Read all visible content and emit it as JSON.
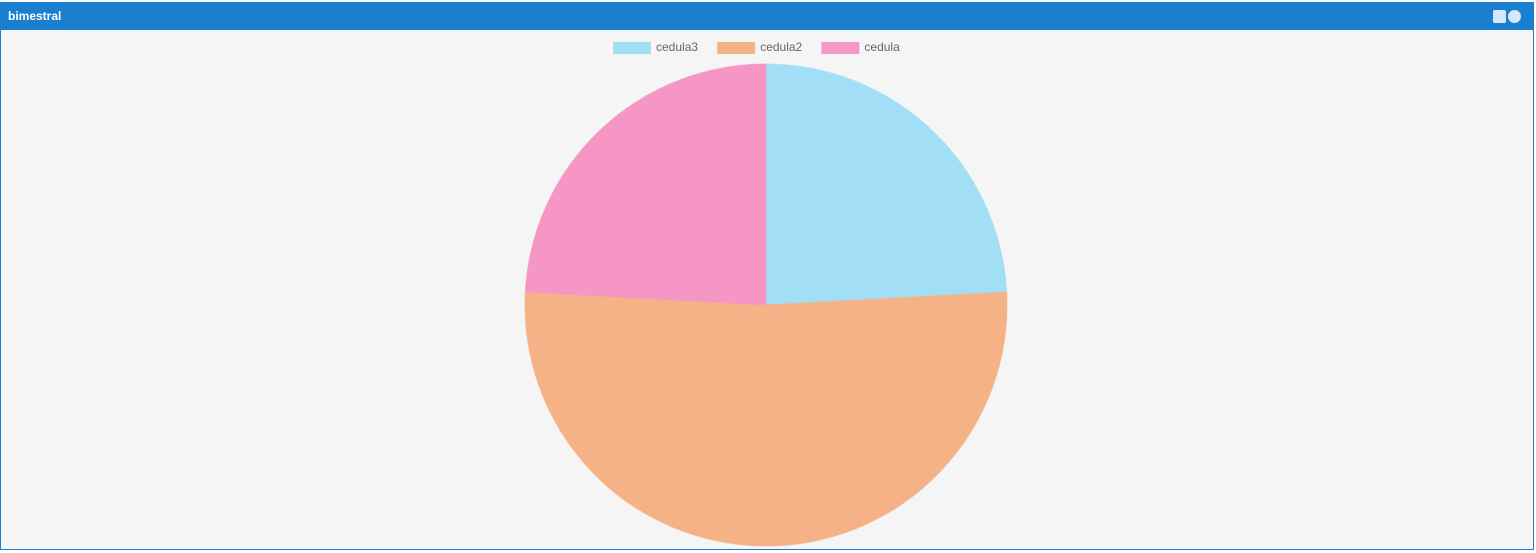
{
  "header": {
    "title": "bimestral"
  },
  "chart_data": {
    "type": "pie",
    "categories": [
      "cedula3",
      "cedula2",
      "cedula"
    ],
    "values": [
      7,
      15,
      7
    ],
    "colors": [
      "#a2dff6",
      "#f5b286",
      "#f596c4"
    ],
    "legend": "top"
  }
}
